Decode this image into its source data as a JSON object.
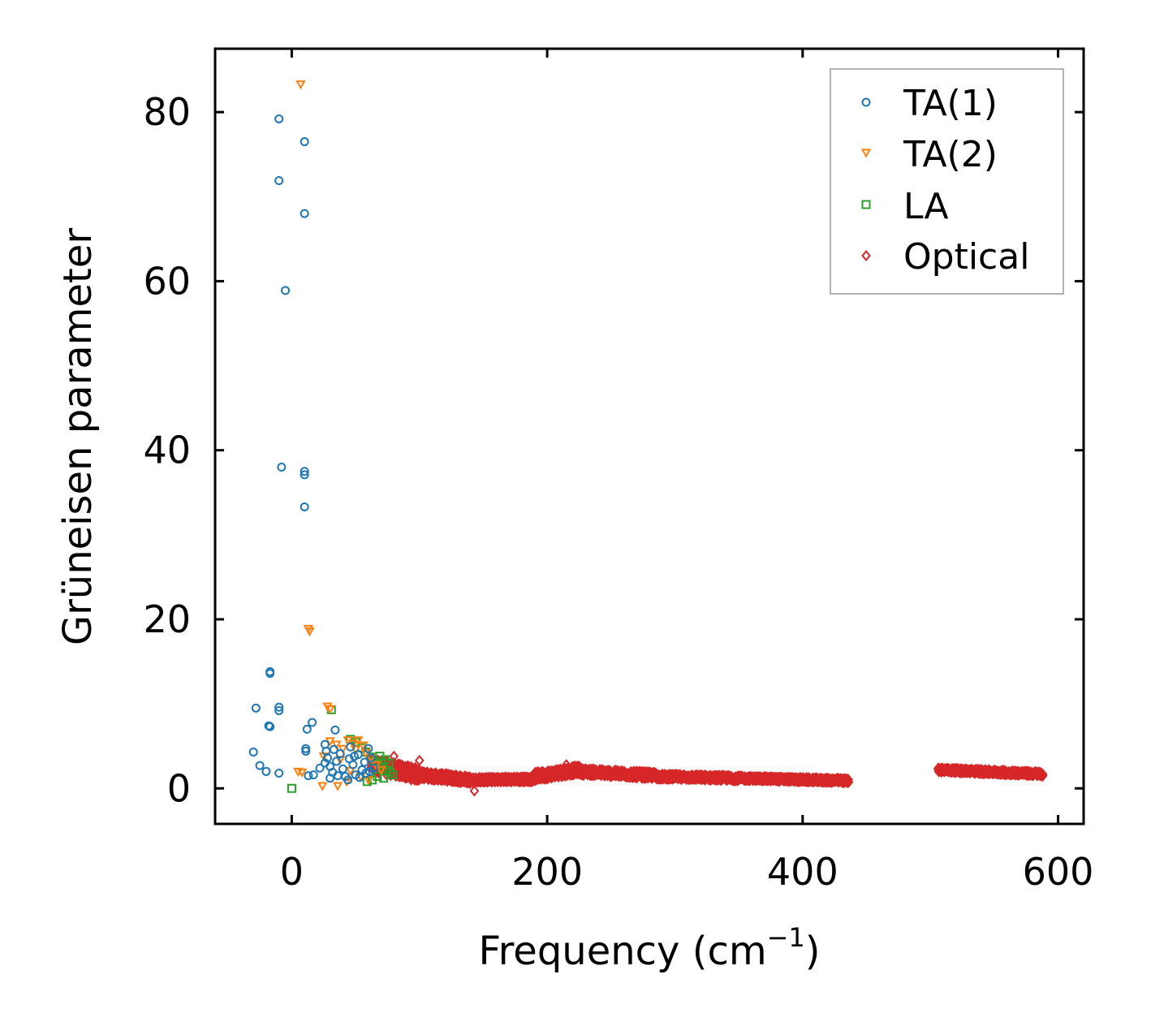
{
  "chart_data": {
    "type": "scatter",
    "title": "",
    "xlabel": "Frequency (cm",
    "xlabel_sup": "−1",
    "xlabel_close": ")",
    "ylabel": "Grüneisen parameter",
    "xlim": [
      -60,
      620
    ],
    "ylim": [
      -4.2,
      87.5
    ],
    "xticks": [
      0,
      200,
      400,
      600
    ],
    "yticks": [
      0,
      20,
      40,
      60,
      80
    ],
    "xtick_labels": [
      "0",
      "200",
      "400",
      "600"
    ],
    "ytick_labels": [
      "0",
      "20",
      "40",
      "60",
      "80"
    ],
    "grid": false,
    "legend_position": "top-right",
    "series": [
      {
        "name": "TA(1)",
        "marker": "circle",
        "color": "#1f77b4",
        "points": [
          [
            -10,
            79.2
          ],
          [
            10,
            76.5
          ],
          [
            -10,
            71.9
          ],
          [
            10,
            68
          ],
          [
            -5,
            58.9
          ],
          [
            -8,
            38
          ],
          [
            10,
            37.5
          ],
          [
            10,
            37.1
          ],
          [
            10,
            33.3
          ],
          [
            -17,
            13.8
          ],
          [
            -17,
            13.6
          ],
          [
            -28,
            9.5
          ],
          [
            -10,
            9.6
          ],
          [
            -10,
            9.2
          ],
          [
            -18,
            7.4
          ],
          [
            -17,
            7.3
          ],
          [
            16,
            7.8
          ],
          [
            12,
            7
          ],
          [
            34,
            6.9
          ],
          [
            11,
            4.7
          ],
          [
            11,
            4.4
          ],
          [
            -30,
            4.3
          ],
          [
            -25,
            2.7
          ],
          [
            -20,
            2.0
          ],
          [
            -10,
            1.8
          ],
          [
            13,
            1.5
          ],
          [
            17,
            1.6
          ],
          [
            22,
            2.4
          ],
          [
            26,
            5.2
          ],
          [
            27,
            4.4
          ],
          [
            28,
            3.6
          ],
          [
            30,
            2.6
          ],
          [
            32,
            1.9
          ],
          [
            35,
            3.2
          ],
          [
            38,
            4.1
          ],
          [
            40,
            2.3
          ],
          [
            42,
            1.4
          ],
          [
            45,
            3.5
          ],
          [
            48,
            2.8
          ],
          [
            50,
            1.6
          ],
          [
            52,
            4.0
          ],
          [
            55,
            2.2
          ],
          [
            57,
            3.1
          ],
          [
            60,
            4.7
          ],
          [
            62,
            3.6
          ],
          [
            64,
            2.4
          ],
          [
            30,
            1.2
          ],
          [
            36,
            1.5
          ],
          [
            44,
            1.0
          ],
          [
            53,
            1.3
          ],
          [
            58,
            1.8
          ],
          [
            61,
            2.0
          ],
          [
            26,
            3.0
          ],
          [
            33,
            4.6
          ],
          [
            46,
            4.9
          ],
          [
            49,
            3.8
          ]
        ]
      },
      {
        "name": "TA(2)",
        "marker": "triangle-down",
        "color": "#ff7f0e",
        "points": [
          [
            7,
            83.3
          ],
          [
            13,
            18.9
          ],
          [
            14,
            18.6
          ],
          [
            28,
            9.7
          ],
          [
            30,
            9.4
          ],
          [
            5,
            2.0
          ],
          [
            8,
            1.9
          ],
          [
            24,
            0.3
          ],
          [
            36,
            0.3
          ],
          [
            43,
            0.8
          ],
          [
            30,
            5.6
          ],
          [
            35,
            5.2
          ],
          [
            40,
            4.7
          ],
          [
            44,
            5.7
          ],
          [
            48,
            5.3
          ],
          [
            52,
            5.7
          ],
          [
            56,
            5.1
          ],
          [
            58,
            4.2
          ],
          [
            62,
            3.6
          ],
          [
            66,
            2.8
          ],
          [
            70,
            2.2
          ],
          [
            38,
            3.4
          ],
          [
            46,
            2.1
          ],
          [
            54,
            1.4
          ],
          [
            60,
            1.0
          ],
          [
            25,
            3.8
          ],
          [
            50,
            4.6
          ]
        ]
      },
      {
        "name": "LA",
        "marker": "square",
        "color": "#2ca02c",
        "points": [
          [
            31,
            9.3
          ],
          [
            0,
            0.0
          ],
          [
            46,
            5.8
          ],
          [
            50,
            5.5
          ],
          [
            55,
            4.8
          ],
          [
            58,
            4.3
          ],
          [
            62,
            3.7
          ],
          [
            65,
            3.2
          ],
          [
            68,
            2.8
          ],
          [
            71,
            2.4
          ],
          [
            74,
            2.1
          ],
          [
            77,
            1.9
          ],
          [
            79,
            1.6
          ],
          [
            72,
            1.2
          ],
          [
            67,
            1.4
          ],
          [
            63,
            1.0
          ],
          [
            59,
            0.8
          ],
          [
            76,
            3.0
          ],
          [
            73,
            3.4
          ],
          [
            69,
            3.8
          ]
        ]
      },
      {
        "name": "Optical",
        "marker": "diamond",
        "color": "#d62728",
        "bands": [
          {
            "x": [
              62,
              100
            ],
            "y_mid": [
              2.8,
              1.6
            ],
            "spread": 1.6
          },
          {
            "x": [
              100,
              140
            ],
            "y_mid": [
              1.6,
              1.0
            ],
            "spread": 0.9
          },
          {
            "x": [
              140,
              190
            ],
            "y_mid": [
              1.0,
              1.1
            ],
            "spread": 0.6
          },
          {
            "x": [
              190,
              225
            ],
            "y_mid": [
              1.4,
              2.2
            ],
            "spread": 1.0
          },
          {
            "x": [
              225,
              285
            ],
            "y_mid": [
              2.0,
              1.5
            ],
            "spread": 0.8
          },
          {
            "x": [
              285,
              350
            ],
            "y_mid": [
              1.4,
              1.2
            ],
            "spread": 0.6
          },
          {
            "x": [
              350,
              436
            ],
            "y_mid": [
              1.2,
              0.9
            ],
            "spread": 0.5
          },
          {
            "x": [
              506,
              588
            ],
            "y_mid": [
              2.2,
              1.7
            ],
            "spread": 0.5
          }
        ],
        "points": [
          [
            143,
            -0.3
          ],
          [
            215,
            2.8
          ],
          [
            100,
            3.3
          ],
          [
            80,
            3.8
          ]
        ]
      }
    ]
  }
}
